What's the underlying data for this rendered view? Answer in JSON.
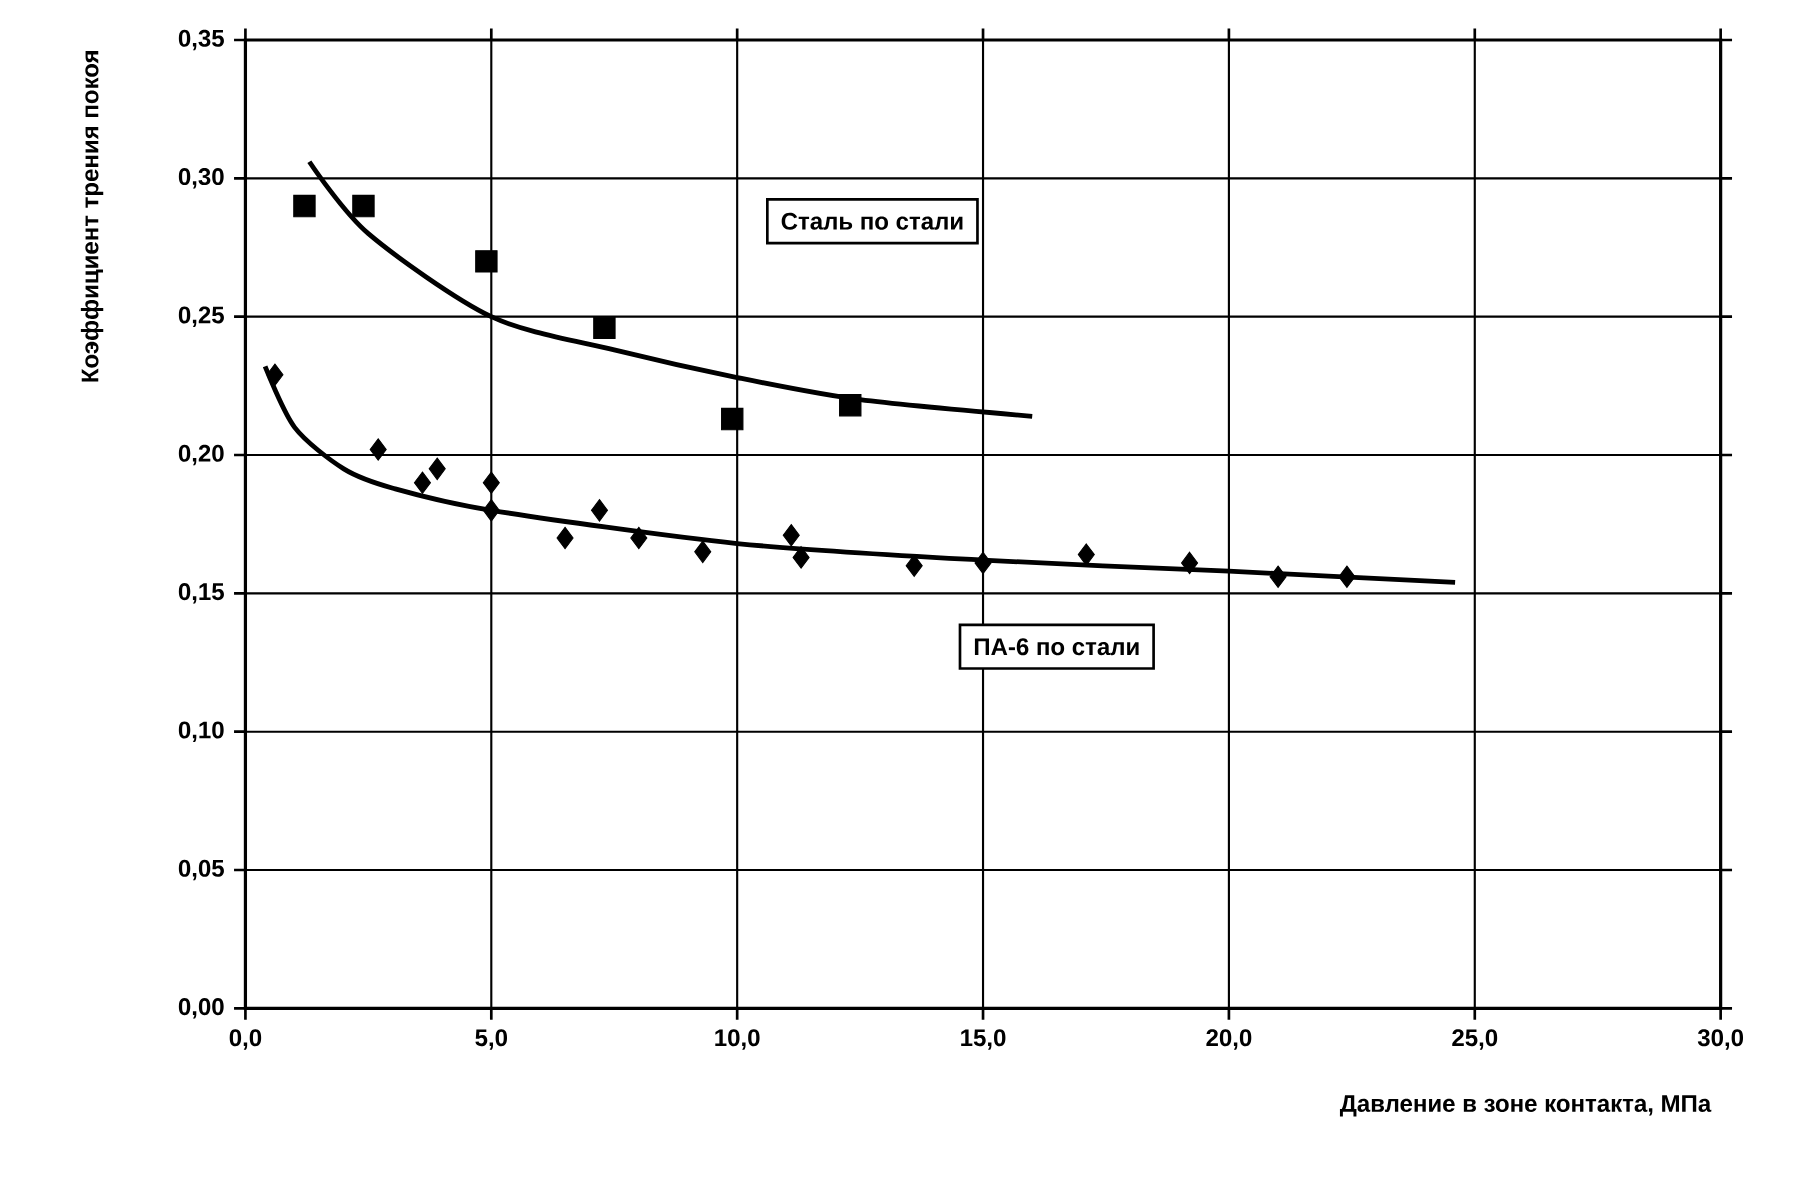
{
  "chart_data": {
    "type": "scatter",
    "xlabel": "Давление в зоне контакта, МПа",
    "ylabel": "Коэффициент трения покоя",
    "xlim": [
      0,
      30
    ],
    "ylim": [
      0,
      0.35
    ],
    "xticks": [
      {
        "value": 0,
        "label": "0,0"
      },
      {
        "value": 5,
        "label": "5,0"
      },
      {
        "value": 10,
        "label": "10,0"
      },
      {
        "value": 15,
        "label": "15,0"
      },
      {
        "value": 20,
        "label": "20,0"
      },
      {
        "value": 25,
        "label": "25,0"
      },
      {
        "value": 30,
        "label": "30,0"
      }
    ],
    "yticks": [
      {
        "value": 0,
        "label": "0,00"
      },
      {
        "value": 0.05,
        "label": "0,05"
      },
      {
        "value": 0.1,
        "label": "0,10"
      },
      {
        "value": 0.15,
        "label": "0,15"
      },
      {
        "value": 0.2,
        "label": "0,20"
      },
      {
        "value": 0.25,
        "label": "0,25"
      },
      {
        "value": 0.3,
        "label": "0,30"
      },
      {
        "value": 0.35,
        "label": "0,35"
      }
    ],
    "grid": true,
    "legend": false,
    "series": [
      {
        "name": "Сталь по стали",
        "marker": "square",
        "color": "#000000",
        "x": [
          1.2,
          2.4,
          4.9,
          7.3,
          9.9,
          12.3
        ],
        "values": [
          0.29,
          0.29,
          0.27,
          0.246,
          0.213,
          0.218
        ]
      },
      {
        "type": "line",
        "marker": "none",
        "color": "#000000",
        "x": [
          1.3,
          2.5,
          5,
          7.5,
          10,
          12.5,
          16
        ],
        "values": [
          0.306,
          0.28,
          0.25,
          0.238,
          0.228,
          0.22,
          0.214
        ]
      },
      {
        "name": "ПА-6 по стали",
        "marker": "diamond",
        "color": "#000000",
        "x": [
          0.6,
          2.7,
          3.6,
          3.9,
          5.0,
          5.0,
          6.5,
          7.2,
          8.0,
          9.3,
          11.1,
          11.3,
          13.6,
          15.0,
          17.1,
          19.2,
          21.0,
          22.4
        ],
        "values": [
          0.229,
          0.202,
          0.19,
          0.195,
          0.19,
          0.18,
          0.17,
          0.18,
          0.17,
          0.165,
          0.171,
          0.163,
          0.16,
          0.161,
          0.164,
          0.161,
          0.156,
          0.156
        ]
      },
      {
        "type": "line",
        "marker": "none",
        "color": "#000000",
        "x": [
          0.4,
          1,
          2,
          3,
          5,
          10,
          15,
          20,
          24.6
        ],
        "values": [
          0.232,
          0.21,
          0.195,
          0.188,
          0.18,
          0.168,
          0.162,
          0.158,
          0.154
        ]
      }
    ]
  }
}
